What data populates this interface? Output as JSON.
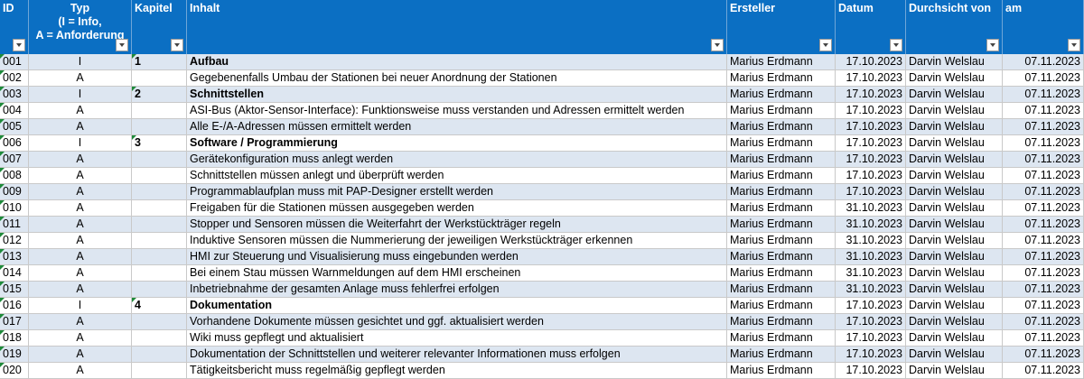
{
  "header": {
    "columns": [
      "ID",
      "Typ\n(I = Info,\nA = Anforderung",
      "Kapitel",
      "Inhalt",
      "Ersteller",
      "Datum",
      "Durchsicht von",
      "am"
    ]
  },
  "table": {
    "rows": [
      [
        "001",
        "I",
        "1",
        "Aufbau",
        "Marius Erdmann",
        "17.10.2023",
        "Darvin Welslau",
        "07.11.2023"
      ],
      [
        "002",
        "A",
        null,
        "Gegebenenfalls Umbau der Stationen bei neuer Anordnung der Stationen",
        "Marius Erdmann",
        "17.10.2023",
        "Darvin Welslau",
        "07.11.2023"
      ],
      [
        "003",
        "I",
        "2",
        "Schnittstellen",
        "Marius Erdmann",
        "17.10.2023",
        "Darvin Welslau",
        "07.11.2023"
      ],
      [
        "004",
        "A",
        null,
        "ASI-Bus (Aktor-Sensor-Interface): Funktionsweise muss verstanden und Adressen ermittelt werden",
        "Marius Erdmann",
        "17.10.2023",
        "Darvin Welslau",
        "07.11.2023"
      ],
      [
        "005",
        "A",
        null,
        "Alle E-/A-Adressen müssen ermittelt werden",
        "Marius Erdmann",
        "17.10.2023",
        "Darvin Welslau",
        "07.11.2023"
      ],
      [
        "006",
        "I",
        "3",
        "Software / Programmierung",
        "Marius Erdmann",
        "17.10.2023",
        "Darvin Welslau",
        "07.11.2023"
      ],
      [
        "007",
        "A",
        null,
        "Gerätekonfiguration muss anlegt werden",
        "Marius Erdmann",
        "17.10.2023",
        "Darvin Welslau",
        "07.11.2023"
      ],
      [
        "008",
        "A",
        null,
        "Schnittstellen müssen anlegt und überprüft werden",
        "Marius Erdmann",
        "17.10.2023",
        "Darvin Welslau",
        "07.11.2023"
      ],
      [
        "009",
        "A",
        null,
        "Programmablaufplan muss mit PAP-Designer erstellt werden",
        "Marius Erdmann",
        "17.10.2023",
        "Darvin Welslau",
        "07.11.2023"
      ],
      [
        "010",
        "A",
        null,
        "Freigaben für die Stationen müssen ausgegeben werden",
        "Marius Erdmann",
        "31.10.2023",
        "Darvin Welslau",
        "07.11.2023"
      ],
      [
        "011",
        "A",
        null,
        "Stopper und Sensoren müssen die Weiterfahrt der Werkstückträger regeln",
        "Marius Erdmann",
        "31.10.2023",
        "Darvin Welslau",
        "07.11.2023"
      ],
      [
        "012",
        "A",
        null,
        "Induktive Sensoren müssen die Nummerierung der jeweiligen Werkstückträger erkennen",
        "Marius Erdmann",
        "31.10.2023",
        "Darvin Welslau",
        "07.11.2023"
      ],
      [
        "013",
        "A",
        null,
        "HMI zur Steuerung und Visualisierung muss eingebunden werden",
        "Marius Erdmann",
        "31.10.2023",
        "Darvin Welslau",
        "07.11.2023"
      ],
      [
        "014",
        "A",
        null,
        "Bei einem Stau müssen Warnmeldungen auf dem HMI erscheinen",
        "Marius Erdmann",
        "31.10.2023",
        "Darvin Welslau",
        "07.11.2023"
      ],
      [
        "015",
        "A",
        null,
        "Inbetriebnahme der gesamten Anlage muss fehlerfrei erfolgen",
        "Marius Erdmann",
        "31.10.2023",
        "Darvin Welslau",
        "07.11.2023"
      ],
      [
        "016",
        "I",
        "4",
        "Dokumentation",
        "Marius Erdmann",
        "17.10.2023",
        "Darvin Welslau",
        "07.11.2023"
      ],
      [
        "017",
        "A",
        null,
        "Vorhandene Dokumente müssen gesichtet und ggf. aktualisiert werden",
        "Marius Erdmann",
        "17.10.2023",
        "Darvin Welslau",
        "07.11.2023"
      ],
      [
        "018",
        "A",
        null,
        "Wiki muss gepflegt und aktualisiert",
        "Marius Erdmann",
        "17.10.2023",
        "Darvin Welslau",
        "07.11.2023"
      ],
      [
        "019",
        "A",
        null,
        "Dokumentation der Schnittstellen und weiterer relevanter Informationen muss erfolgen",
        "Marius Erdmann",
        "17.10.2023",
        "Darvin Welslau",
        "07.11.2023"
      ],
      [
        "020",
        "A",
        null,
        "Tätigkeitsbericht muss regelmäßig gepflegt werden",
        "Marius Erdmann",
        "17.10.2023",
        "Darvin Welslau",
        "07.11.2023"
      ]
    ]
  }
}
